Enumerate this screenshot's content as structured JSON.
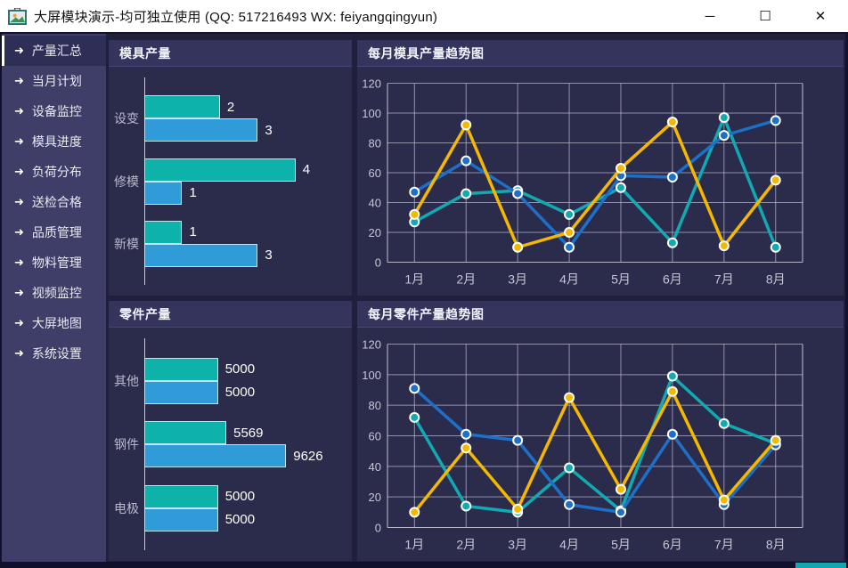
{
  "window": {
    "title": "大屏模块演示-均可独立使用 (QQ: 517216493  WX: feiyangqingyun)",
    "controls": {
      "minimize": "─",
      "maximize": "☐",
      "close": "✕"
    }
  },
  "sidebar": {
    "items": [
      {
        "label": "产量汇总",
        "active": true
      },
      {
        "label": "当月计划",
        "active": false
      },
      {
        "label": "设备监控",
        "active": false
      },
      {
        "label": "模具进度",
        "active": false
      },
      {
        "label": "负荷分布",
        "active": false
      },
      {
        "label": "送检合格",
        "active": false
      },
      {
        "label": "品质管理",
        "active": false
      },
      {
        "label": "物料管理",
        "active": false
      },
      {
        "label": "视频监控",
        "active": false
      },
      {
        "label": "大屏地图",
        "active": false
      },
      {
        "label": "系统设置",
        "active": false
      }
    ]
  },
  "colors": {
    "bar_teal": "#0db3ab",
    "bar_blue": "#2f9bd9",
    "line_teal": "#12aab2",
    "line_blue": "#1e6fc8",
    "line_yellow": "#f5b800",
    "grid": "#b6b6c8",
    "axis": "#d4d4e2",
    "tick_text": "#c6c6d6"
  },
  "chart_data": [
    {
      "id": "mold_bar",
      "type": "bar",
      "orientation": "horizontal",
      "title": "模具产量",
      "categories": [
        "设变",
        "修模",
        "新模"
      ],
      "series": [
        {
          "name": "teal",
          "color": "#0db3ab",
          "values": [
            2,
            4,
            1
          ]
        },
        {
          "name": "blue",
          "color": "#2f9bd9",
          "values": [
            3,
            1,
            3
          ]
        }
      ],
      "xlim": [
        0,
        5.3
      ],
      "grid": false,
      "legend": "none"
    },
    {
      "id": "mold_trend",
      "type": "line",
      "title": "每月模具产量趋势图",
      "x": [
        "1月",
        "2月",
        "3月",
        "4月",
        "5月",
        "6月",
        "7月",
        "8月"
      ],
      "ylim": [
        0,
        120
      ],
      "yticks": [
        0,
        20,
        40,
        60,
        80,
        100,
        120
      ],
      "grid": true,
      "legend": "none",
      "series": [
        {
          "name": "teal",
          "color": "#12aab2",
          "values": [
            27,
            46,
            48,
            32,
            50,
            13,
            97,
            10
          ]
        },
        {
          "name": "blue",
          "color": "#1e6fc8",
          "values": [
            47,
            68,
            46,
            10,
            58,
            57,
            85,
            95
          ]
        },
        {
          "name": "yellow",
          "color": "#f5b800",
          "values": [
            32,
            92,
            10,
            20,
            63,
            94,
            11,
            55
          ]
        }
      ]
    },
    {
      "id": "part_bar",
      "type": "bar",
      "orientation": "horizontal",
      "title": "零件产量",
      "categories": [
        "其他",
        "钢件",
        "电极"
      ],
      "series": [
        {
          "name": "teal",
          "color": "#0db3ab",
          "values": [
            5000,
            5569,
            5000
          ]
        },
        {
          "name": "blue",
          "color": "#2f9bd9",
          "values": [
            5000,
            9626,
            5000
          ]
        }
      ],
      "xlim": [
        0,
        13600
      ],
      "grid": false,
      "legend": "none"
    },
    {
      "id": "part_trend",
      "type": "line",
      "title": "每月零件产量趋势图",
      "x": [
        "1月",
        "2月",
        "3月",
        "4月",
        "5月",
        "6月",
        "7月",
        "8月"
      ],
      "ylim": [
        0,
        120
      ],
      "yticks": [
        0,
        20,
        40,
        60,
        80,
        100,
        120
      ],
      "grid": true,
      "legend": "none",
      "series": [
        {
          "name": "teal",
          "color": "#12aab2",
          "values": [
            72,
            14,
            10,
            39,
            11,
            99,
            68,
            55
          ]
        },
        {
          "name": "blue",
          "color": "#1e6fc8",
          "values": [
            91,
            61,
            57,
            15,
            10,
            61,
            15,
            54
          ]
        },
        {
          "name": "yellow",
          "color": "#f5b800",
          "values": [
            10,
            52,
            12,
            85,
            25,
            89,
            18,
            57
          ]
        }
      ]
    }
  ]
}
